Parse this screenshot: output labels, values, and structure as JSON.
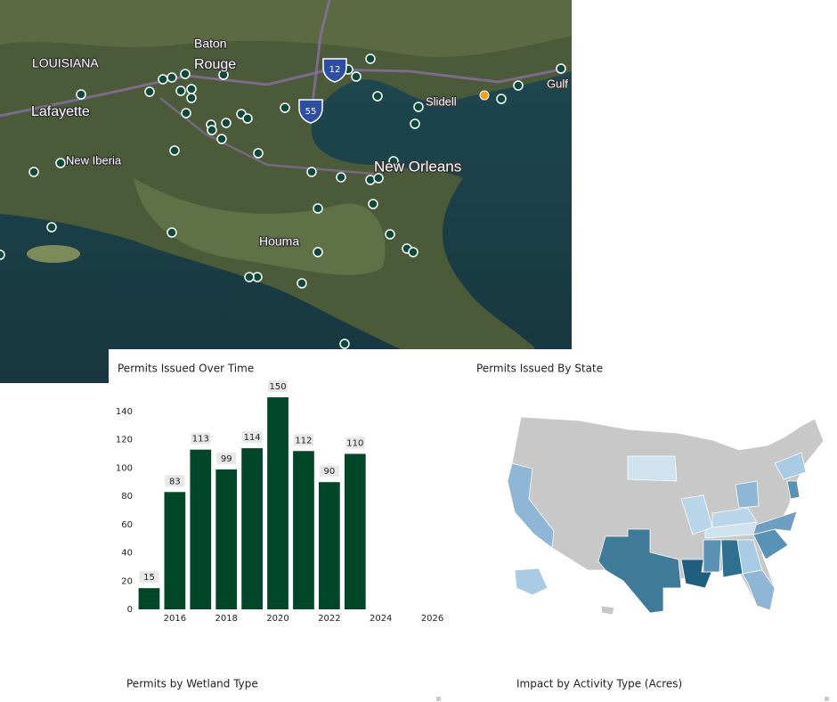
{
  "map": {
    "labels": [
      "LOUISIANA",
      "Baton",
      "Rouge",
      "Lafayette",
      "New Iberia",
      "Houma",
      "New Orleans",
      "Slidell",
      "Gulf"
    ],
    "shields": [
      "12",
      "55"
    ]
  },
  "chart_data": {
    "type": "bar",
    "title": "Permits Issued Over Time",
    "x": [
      2015,
      2016,
      2017,
      2018,
      2019,
      2020,
      2021,
      2022,
      2023
    ],
    "values": [
      15,
      83,
      113,
      99,
      114,
      150,
      112,
      90,
      110
    ],
    "color": "#00472a",
    "xlim": [
      2014.5,
      2026.5
    ],
    "xticks": [
      2016,
      2018,
      2020,
      2022,
      2024,
      2026
    ],
    "ylim": [
      0,
      150
    ],
    "yticks": [
      0,
      20,
      40,
      60,
      80,
      100,
      120,
      140
    ]
  },
  "panels": [
    "Permits Issued By State",
    "Permits by Wetland Type",
    "Impact by Activity Type (Acres)"
  ]
}
